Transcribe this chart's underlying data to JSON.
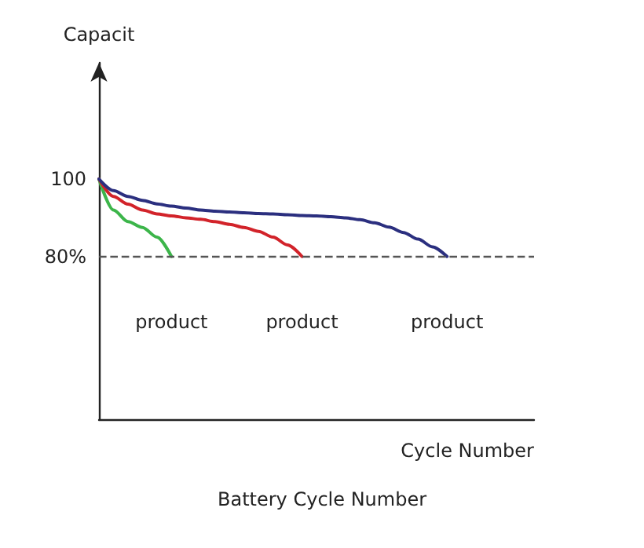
{
  "chart_data": {
    "type": "line",
    "title": "Battery Cycle Number",
    "xlabel": "Cycle Number",
    "ylabel": "Capacit",
    "categories": [
      null,
      null,
      null,
      null,
      null,
      null,
      null,
      null,
      null,
      null,
      null,
      null,
      null,
      null,
      null,
      null,
      null,
      null,
      null,
      null,
      null,
      null,
      null,
      null,
      null,
      null,
      null,
      null,
      null,
      null,
      null
    ],
    "series": [
      {
        "color": "#3cb54a",
        "values": [
          100,
          92,
          89,
          87.5,
          85,
          80,
          null,
          null,
          null,
          null,
          null,
          null,
          null,
          null,
          null,
          null,
          null,
          null,
          null,
          null,
          null,
          null,
          null,
          null,
          null,
          null,
          null,
          null,
          null,
          null,
          null
        ]
      },
      {
        "color": "#d2232a",
        "values": [
          100,
          95.5,
          93.5,
          92,
          91,
          90.5,
          90,
          89.6,
          89,
          88.3,
          87.5,
          86.5,
          85,
          83,
          80,
          null,
          null,
          null,
          null,
          null,
          null,
          null,
          null,
          null,
          null,
          null,
          null,
          null,
          null,
          null,
          null
        ]
      },
      {
        "color": "#2b2f7f",
        "values": [
          100,
          97,
          95.5,
          94.5,
          93.6,
          93,
          92.5,
          92,
          91.7,
          91.5,
          91.3,
          91.1,
          91,
          90.8,
          90.6,
          90.5,
          90.3,
          90,
          89.5,
          88.7,
          87.6,
          86.2,
          84.5,
          82.5,
          80,
          null,
          null,
          null,
          null,
          null,
          null
        ]
      }
    ],
    "ylim": [
      38,
      130
    ],
    "yticks": [
      100,
      {
        "value": 80,
        "label": "80%"
      }
    ],
    "ref_lines": [
      {
        "axis": "y",
        "value": 80,
        "color": "#555555",
        "line_style": "dashed"
      }
    ],
    "annotations": [
      "product",
      "product",
      "product"
    ],
    "tick_labels": "y",
    "grid": false,
    "line_style": "solid"
  }
}
